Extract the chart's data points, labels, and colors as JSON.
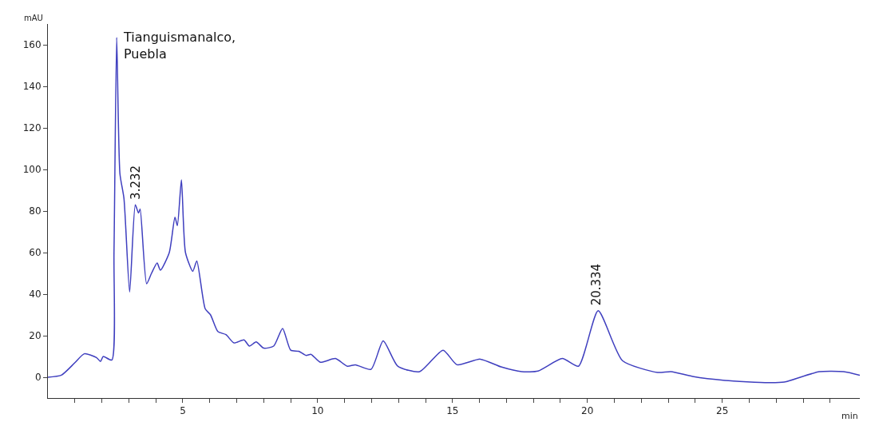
{
  "chart_data": {
    "type": "line",
    "title": "Tianguismanalco,\nPuebla",
    "xlabel": "min",
    "ylabel": "mAU",
    "x": [
      0,
      0.5,
      1.0,
      1.35,
      1.8,
      1.95,
      2.05,
      2.37,
      2.45,
      2.55,
      2.67,
      2.82,
      3.03,
      3.24,
      3.36,
      3.42,
      3.66,
      3.84,
      4.05,
      4.17,
      4.5,
      4.71,
      4.8,
      4.95,
      5.1,
      5.37,
      5.52,
      5.83,
      6.03,
      6.3,
      6.6,
      6.9,
      7.27,
      7.47,
      7.72,
      8.0,
      8.37,
      8.7,
      9.0,
      9.3,
      9.57,
      9.76,
      10.1,
      10.66,
      11.1,
      11.4,
      11.98,
      12.43,
      12.97,
      13.78,
      14.65,
      15.17,
      16.03,
      16.8,
      17.57,
      18.17,
      19.07,
      19.67,
      20.4,
      21.3,
      22.6,
      23.1,
      23.9,
      25.1,
      26.7,
      27.3,
      28.6,
      29.5,
      30.1
    ],
    "series": [
      {
        "color": "#3f3fbf",
        "values": [
          0,
          1,
          7,
          11.3,
          9.5,
          7.6,
          10,
          8.3,
          60,
          163.5,
          98,
          86,
          41,
          83,
          79,
          81,
          45,
          50,
          55,
          51.5,
          60,
          77,
          73,
          95,
          60,
          51,
          56,
          33,
          30,
          22,
          20.5,
          16.5,
          18,
          15,
          17,
          14,
          15,
          23.5,
          13,
          12.5,
          10.5,
          11,
          7.2,
          9,
          5.3,
          6,
          3.8,
          17.5,
          5.3,
          2.7,
          13,
          6,
          8.7,
          5,
          2.7,
          3,
          9,
          5.3,
          32,
          8,
          2.3,
          2.7,
          0.4,
          -1.5,
          -2.6,
          -2.3,
          2.7,
          2.7,
          1
        ]
      }
    ],
    "annotations": [
      {
        "text": "3.232",
        "x": 3.232,
        "y": 83
      },
      {
        "text": "20.334",
        "x": 20.334,
        "y": 32
      }
    ],
    "xlim": [
      0,
      30.1
    ],
    "ylim": [
      -10,
      170
    ],
    "xticks": [
      {
        "value": 1,
        "label": null
      },
      {
        "value": 2,
        "label": null
      },
      {
        "value": 3,
        "label": null
      },
      {
        "value": 4,
        "label": null
      },
      5,
      {
        "value": 6,
        "label": null
      },
      {
        "value": 7,
        "label": null
      },
      {
        "value": 8,
        "label": null
      },
      {
        "value": 9,
        "label": null
      },
      10,
      {
        "value": 11,
        "label": null
      },
      {
        "value": 12,
        "label": null
      },
      {
        "value": 13,
        "label": null
      },
      {
        "value": 14,
        "label": null
      },
      15,
      {
        "value": 16,
        "label": null
      },
      {
        "value": 17,
        "label": null
      },
      {
        "value": 18,
        "label": null
      },
      {
        "value": 19,
        "label": null
      },
      20,
      {
        "value": 21,
        "label": null
      },
      {
        "value": 22,
        "label": null
      },
      {
        "value": 23,
        "label": null
      },
      {
        "value": 24,
        "label": null
      },
      25,
      {
        "value": 26,
        "label": null
      },
      {
        "value": 27,
        "label": null
      },
      {
        "value": 28,
        "label": null
      },
      {
        "value": 29,
        "label": null
      }
    ],
    "yticks": [
      0,
      20,
      40,
      60,
      80,
      100,
      120,
      140,
      160
    ],
    "marker": "none",
    "line_style": "solid"
  }
}
